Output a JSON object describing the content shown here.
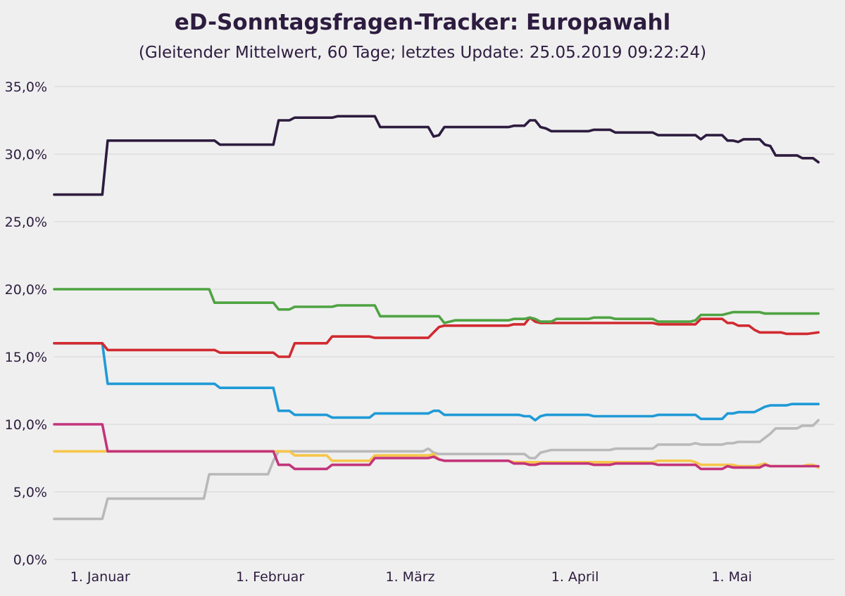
{
  "chart_data": {
    "type": "line",
    "title": "eD-Sonntagsfragen-Tracker: Europawahl",
    "subtitle": "(Gleitender Mittelwert, 60 Tage; letztes Update: 25.05.2019 09:22:24)",
    "xlabel": "",
    "ylabel": "",
    "x_unit": "days since 1 January 2019",
    "xlim": [
      -3,
      143
    ],
    "ylim": [
      0,
      35
    ],
    "grid": true,
    "legend": "none",
    "y_ticks": [
      {
        "value": 0,
        "label": "0,0%"
      },
      {
        "value": 5,
        "label": "5,0%"
      },
      {
        "value": 10,
        "label": "10,0%"
      },
      {
        "value": 15,
        "label": "15,0%"
      },
      {
        "value": 20,
        "label": "20,0%"
      },
      {
        "value": 25,
        "label": "25,0%"
      },
      {
        "value": 30,
        "label": "30,0%"
      },
      {
        "value": 35,
        "label": "35,0%"
      }
    ],
    "x_ticks": [
      {
        "value": 0,
        "label": "1. Januar"
      },
      {
        "value": 31,
        "label": "1. Februar"
      },
      {
        "value": 59,
        "label": "1. März"
      },
      {
        "value": 90,
        "label": "1. April"
      },
      {
        "value": 120,
        "label": "1. Mai"
      }
    ],
    "series": [
      {
        "name": "dark",
        "color": "#2d1c3f",
        "points": [
          [
            -3,
            27.0
          ],
          [
            6,
            27.0
          ],
          [
            7,
            31.0
          ],
          [
            27,
            31.0
          ],
          [
            28,
            30.7
          ],
          [
            38,
            30.7
          ],
          [
            39,
            32.5
          ],
          [
            41,
            32.5
          ],
          [
            42,
            32.7
          ],
          [
            49,
            32.7
          ],
          [
            50,
            32.8
          ],
          [
            57,
            32.8
          ],
          [
            58,
            32.0
          ],
          [
            67,
            32.0
          ],
          [
            68,
            31.3
          ],
          [
            69,
            31.4
          ],
          [
            70,
            32.0
          ],
          [
            82,
            32.0
          ],
          [
            83,
            32.1
          ],
          [
            85,
            32.1
          ],
          [
            86,
            32.5
          ],
          [
            87,
            32.5
          ],
          [
            88,
            32.0
          ],
          [
            89,
            31.9
          ],
          [
            90,
            31.7
          ],
          [
            97,
            31.7
          ],
          [
            98,
            31.8
          ],
          [
            101,
            31.8
          ],
          [
            102,
            31.6
          ],
          [
            109,
            31.6
          ],
          [
            110,
            31.4
          ],
          [
            117,
            31.4
          ],
          [
            118,
            31.1
          ],
          [
            119,
            31.4
          ],
          [
            122,
            31.4
          ],
          [
            123,
            31.0
          ],
          [
            124,
            31.0
          ],
          [
            125,
            30.9
          ],
          [
            126,
            31.1
          ],
          [
            129,
            31.1
          ],
          [
            130,
            30.7
          ],
          [
            131,
            30.6
          ],
          [
            132,
            29.9
          ],
          [
            136,
            29.9
          ],
          [
            137,
            29.7
          ],
          [
            139,
            29.7
          ],
          [
            140,
            29.4
          ]
        ]
      },
      {
        "name": "green",
        "color": "#4fa342",
        "points": [
          [
            -3,
            20.0
          ],
          [
            26,
            20.0
          ],
          [
            27,
            19.0
          ],
          [
            38,
            19.0
          ],
          [
            39,
            18.5
          ],
          [
            41,
            18.5
          ],
          [
            42,
            18.7
          ],
          [
            49,
            18.7
          ],
          [
            50,
            18.8
          ],
          [
            57,
            18.8
          ],
          [
            58,
            18.0
          ],
          [
            69,
            18.0
          ],
          [
            70,
            17.5
          ],
          [
            71,
            17.6
          ],
          [
            72,
            17.7
          ],
          [
            82,
            17.7
          ],
          [
            83,
            17.8
          ],
          [
            85,
            17.8
          ],
          [
            86,
            17.9
          ],
          [
            87,
            17.8
          ],
          [
            88,
            17.6
          ],
          [
            90,
            17.6
          ],
          [
            91,
            17.8
          ],
          [
            97,
            17.8
          ],
          [
            98,
            17.9
          ],
          [
            101,
            17.9
          ],
          [
            102,
            17.8
          ],
          [
            109,
            17.8
          ],
          [
            110,
            17.6
          ],
          [
            116,
            17.6
          ],
          [
            117,
            17.7
          ],
          [
            118,
            18.1
          ],
          [
            122,
            18.1
          ],
          [
            123,
            18.2
          ],
          [
            124,
            18.3
          ],
          [
            129,
            18.3
          ],
          [
            130,
            18.2
          ],
          [
            131,
            18.2
          ],
          [
            140,
            18.2
          ]
        ]
      },
      {
        "name": "red",
        "color": "#d12a30",
        "points": [
          [
            -3,
            16.0
          ],
          [
            6,
            16.0
          ],
          [
            7,
            15.5
          ],
          [
            27,
            15.5
          ],
          [
            28,
            15.3
          ],
          [
            38,
            15.3
          ],
          [
            39,
            15.0
          ],
          [
            41,
            15.0
          ],
          [
            42,
            16.0
          ],
          [
            48,
            16.0
          ],
          [
            49,
            16.5
          ],
          [
            56,
            16.5
          ],
          [
            57,
            16.4
          ],
          [
            67,
            16.4
          ],
          [
            68,
            16.8
          ],
          [
            69,
            17.2
          ],
          [
            70,
            17.3
          ],
          [
            82,
            17.3
          ],
          [
            83,
            17.4
          ],
          [
            85,
            17.4
          ],
          [
            86,
            17.9
          ],
          [
            87,
            17.6
          ],
          [
            88,
            17.5
          ],
          [
            97,
            17.5
          ],
          [
            98,
            17.5
          ],
          [
            109,
            17.5
          ],
          [
            110,
            17.4
          ],
          [
            117,
            17.4
          ],
          [
            118,
            17.8
          ],
          [
            122,
            17.8
          ],
          [
            123,
            17.5
          ],
          [
            124,
            17.5
          ],
          [
            125,
            17.3
          ],
          [
            127,
            17.3
          ],
          [
            128,
            17.0
          ],
          [
            129,
            16.8
          ],
          [
            130,
            16.8
          ],
          [
            133,
            16.8
          ],
          [
            134,
            16.7
          ],
          [
            137,
            16.7
          ],
          [
            138,
            16.7
          ],
          [
            140,
            16.8
          ]
        ]
      },
      {
        "name": "blue",
        "color": "#1f9ad7",
        "points": [
          [
            -3,
            16.0
          ],
          [
            6,
            16.0
          ],
          [
            7,
            13.0
          ],
          [
            27,
            13.0
          ],
          [
            28,
            12.7
          ],
          [
            38,
            12.7
          ],
          [
            39,
            11.0
          ],
          [
            41,
            11.0
          ],
          [
            42,
            10.7
          ],
          [
            48,
            10.7
          ],
          [
            49,
            10.5
          ],
          [
            56,
            10.5
          ],
          [
            57,
            10.8
          ],
          [
            67,
            10.8
          ],
          [
            68,
            11.0
          ],
          [
            69,
            11.0
          ],
          [
            70,
            10.7
          ],
          [
            84,
            10.7
          ],
          [
            85,
            10.6
          ],
          [
            86,
            10.6
          ],
          [
            87,
            10.3
          ],
          [
            88,
            10.6
          ],
          [
            89,
            10.7
          ],
          [
            97,
            10.7
          ],
          [
            98,
            10.6
          ],
          [
            101,
            10.6
          ],
          [
            102,
            10.6
          ],
          [
            109,
            10.6
          ],
          [
            110,
            10.7
          ],
          [
            117,
            10.7
          ],
          [
            118,
            10.4
          ],
          [
            122,
            10.4
          ],
          [
            123,
            10.8
          ],
          [
            124,
            10.8
          ],
          [
            125,
            10.9
          ],
          [
            128,
            10.9
          ],
          [
            129,
            11.1
          ],
          [
            130,
            11.3
          ],
          [
            131,
            11.4
          ],
          [
            134,
            11.4
          ],
          [
            135,
            11.5
          ],
          [
            139,
            11.5
          ],
          [
            140,
            11.5
          ]
        ]
      },
      {
        "name": "magenta",
        "color": "#c3347b",
        "points": [
          [
            -3,
            10.0
          ],
          [
            6,
            10.0
          ],
          [
            7,
            8.0
          ],
          [
            38,
            8.0
          ],
          [
            39,
            7.0
          ],
          [
            41,
            7.0
          ],
          [
            42,
            6.7
          ],
          [
            48,
            6.7
          ],
          [
            49,
            7.0
          ],
          [
            56,
            7.0
          ],
          [
            57,
            7.5
          ],
          [
            67,
            7.5
          ],
          [
            68,
            7.6
          ],
          [
            69,
            7.4
          ],
          [
            70,
            7.3
          ],
          [
            82,
            7.3
          ],
          [
            83,
            7.1
          ],
          [
            85,
            7.1
          ],
          [
            86,
            7.0
          ],
          [
            87,
            7.0
          ],
          [
            88,
            7.1
          ],
          [
            97,
            7.1
          ],
          [
            98,
            7.0
          ],
          [
            101,
            7.0
          ],
          [
            102,
            7.1
          ],
          [
            109,
            7.1
          ],
          [
            110,
            7.0
          ],
          [
            117,
            7.0
          ],
          [
            118,
            6.7
          ],
          [
            122,
            6.7
          ],
          [
            123,
            6.9
          ],
          [
            124,
            6.8
          ],
          [
            129,
            6.8
          ],
          [
            130,
            7.0
          ],
          [
            131,
            6.9
          ],
          [
            137,
            6.9
          ],
          [
            140,
            6.9
          ]
        ]
      },
      {
        "name": "yellow",
        "color": "#f7c64a",
        "points": [
          [
            -3,
            8.0
          ],
          [
            41,
            8.0
          ],
          [
            42,
            7.7
          ],
          [
            48,
            7.7
          ],
          [
            49,
            7.3
          ],
          [
            56,
            7.3
          ],
          [
            57,
            7.7
          ],
          [
            67,
            7.7
          ],
          [
            68,
            7.8
          ],
          [
            69,
            7.4
          ],
          [
            70,
            7.3
          ],
          [
            82,
            7.3
          ],
          [
            83,
            7.2
          ],
          [
            85,
            7.2
          ],
          [
            86,
            7.2
          ],
          [
            97,
            7.2
          ],
          [
            98,
            7.2
          ],
          [
            109,
            7.2
          ],
          [
            110,
            7.3
          ],
          [
            116,
            7.3
          ],
          [
            117,
            7.2
          ],
          [
            118,
            7.0
          ],
          [
            122,
            7.0
          ],
          [
            123,
            7.0
          ],
          [
            124,
            7.0
          ],
          [
            125,
            6.9
          ],
          [
            127,
            6.9
          ],
          [
            128,
            6.9
          ],
          [
            129,
            7.0
          ],
          [
            130,
            7.1
          ],
          [
            131,
            6.9
          ],
          [
            137,
            6.9
          ],
          [
            138,
            7.0
          ],
          [
            139,
            7.0
          ],
          [
            140,
            6.8
          ]
        ]
      },
      {
        "name": "grey",
        "color": "#b9b9b9",
        "points": [
          [
            -3,
            3.0
          ],
          [
            6,
            3.0
          ],
          [
            7,
            4.5
          ],
          [
            25,
            4.5
          ],
          [
            26,
            6.3
          ],
          [
            37,
            6.3
          ],
          [
            38,
            7.3
          ],
          [
            39,
            8.0
          ],
          [
            66,
            8.0
          ],
          [
            67,
            8.2
          ],
          [
            68,
            7.9
          ],
          [
            69,
            7.8
          ],
          [
            70,
            7.8
          ],
          [
            82,
            7.8
          ],
          [
            83,
            7.8
          ],
          [
            85,
            7.8
          ],
          [
            86,
            7.5
          ],
          [
            87,
            7.5
          ],
          [
            88,
            7.9
          ],
          [
            89,
            8.0
          ],
          [
            90,
            8.1
          ],
          [
            97,
            8.1
          ],
          [
            98,
            8.1
          ],
          [
            101,
            8.1
          ],
          [
            102,
            8.2
          ],
          [
            109,
            8.2
          ],
          [
            110,
            8.5
          ],
          [
            116,
            8.5
          ],
          [
            117,
            8.6
          ],
          [
            118,
            8.5
          ],
          [
            122,
            8.5
          ],
          [
            123,
            8.6
          ],
          [
            124,
            8.6
          ],
          [
            125,
            8.7
          ],
          [
            128,
            8.7
          ],
          [
            129,
            8.7
          ],
          [
            130,
            9.0
          ],
          [
            131,
            9.3
          ],
          [
            132,
            9.7
          ],
          [
            136,
            9.7
          ],
          [
            137,
            9.9
          ],
          [
            139,
            9.9
          ],
          [
            140,
            10.3
          ]
        ]
      }
    ]
  }
}
